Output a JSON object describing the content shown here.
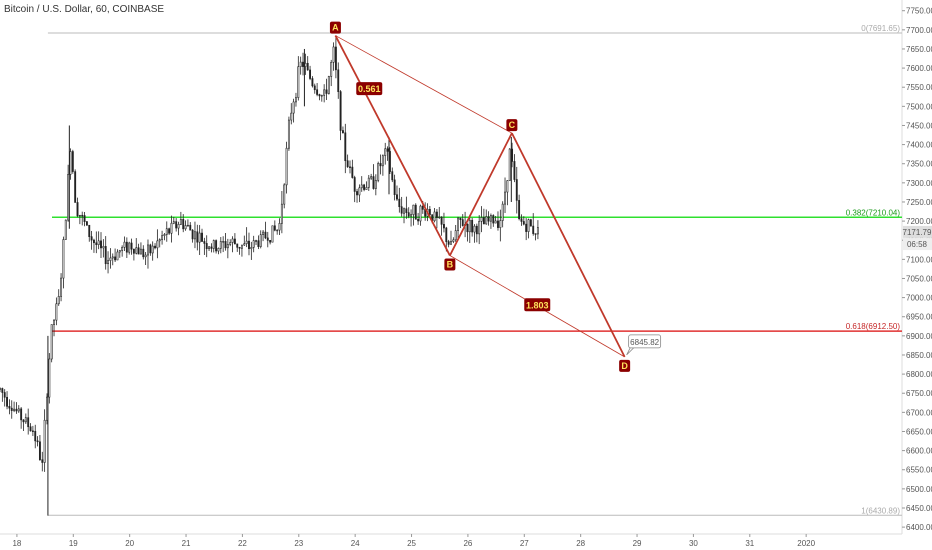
{
  "chart_data": {
    "type": "candlestick",
    "title": "Bitcoin / U.S. Dollar, 60, COINBASE",
    "colors": {
      "candle": "#222222",
      "pattern": "#c0392b",
      "label_bg": "#8b0000",
      "label_text": "#ffe45c",
      "fib_green": "#2fe02f",
      "fib_red": "#e03030",
      "fib_grey": "#bbbbbb"
    },
    "x_axis": {
      "ticks": [
        {
          "day": 18,
          "label": "18"
        },
        {
          "day": 19,
          "label": "19"
        },
        {
          "day": 20,
          "label": "20"
        },
        {
          "day": 21,
          "label": "21"
        },
        {
          "day": 22,
          "label": "22"
        },
        {
          "day": 23,
          "label": "23"
        },
        {
          "day": 24,
          "label": "24"
        },
        {
          "day": 25,
          "label": "25"
        },
        {
          "day": 26,
          "label": "26"
        },
        {
          "day": 27,
          "label": "27"
        },
        {
          "day": 28,
          "label": "28"
        },
        {
          "day": 29,
          "label": "29"
        },
        {
          "day": 30,
          "label": "30"
        },
        {
          "day": 31,
          "label": "31"
        },
        {
          "day": 32,
          "label": "2020"
        }
      ],
      "range": [
        17.7,
        33.7
      ]
    },
    "y_axis": {
      "ticks": [
        6400,
        6450,
        6500,
        6550,
        6600,
        6650,
        6700,
        6750,
        6800,
        6850,
        6900,
        6950,
        7000,
        7050,
        7100,
        7150,
        7200,
        7250,
        7300,
        7350,
        7400,
        7450,
        7500,
        7550,
        7600,
        7650,
        7700,
        7750
      ],
      "range": [
        6382,
        7778
      ],
      "position": "right"
    },
    "fib_levels": [
      {
        "label": "0(7691.65)",
        "price": 7691.65,
        "color": "grey"
      },
      {
        "label": "0.382(7210.04)",
        "price": 7210.04,
        "color": "green"
      },
      {
        "label": "0.618(6912.50)",
        "price": 6912.5,
        "color": "red"
      },
      {
        "label": "1(6430.89)",
        "price": 6430.89,
        "color": "grey"
      }
    ],
    "pattern_points": [
      {
        "label": "A",
        "day": 23.65,
        "price": 7685
      },
      {
        "label": "B",
        "day": 25.68,
        "price": 7110
      },
      {
        "label": "C",
        "day": 26.78,
        "price": 7430
      },
      {
        "label": "D",
        "day": 28.78,
        "price": 6845
      }
    ],
    "ratios": [
      {
        "label": "0.561",
        "day": 24.25,
        "price": 7545
      },
      {
        "label": "1.803",
        "day": 27.23,
        "price": 6980
      }
    ],
    "price_labels": [
      {
        "label": "7171.79",
        "price": 7171.79
      },
      {
        "label": "06:58",
        "price": 7140
      }
    ],
    "target_label": "6845.82",
    "anchors": [
      {
        "day": 17.7,
        "price": 6760
      },
      {
        "day": 18.0,
        "price": 6700
      },
      {
        "day": 18.3,
        "price": 6650
      },
      {
        "day": 18.45,
        "price": 6560
      },
      {
        "day": 18.55,
        "price": 6800
      },
      {
        "day": 18.62,
        "price": 6920
      },
      {
        "day": 18.75,
        "price": 7000
      },
      {
        "day": 18.85,
        "price": 7180
      },
      {
        "day": 18.95,
        "price": 7400
      },
      {
        "day": 19.05,
        "price": 7240
      },
      {
        "day": 19.3,
        "price": 7160
      },
      {
        "day": 19.6,
        "price": 7100
      },
      {
        "day": 20.0,
        "price": 7140
      },
      {
        "day": 20.3,
        "price": 7110
      },
      {
        "day": 20.6,
        "price": 7160
      },
      {
        "day": 20.9,
        "price": 7200
      },
      {
        "day": 21.2,
        "price": 7160
      },
      {
        "day": 21.5,
        "price": 7130
      },
      {
        "day": 21.8,
        "price": 7145
      },
      {
        "day": 22.1,
        "price": 7130
      },
      {
        "day": 22.4,
        "price": 7160
      },
      {
        "day": 22.65,
        "price": 7180
      },
      {
        "day": 22.85,
        "price": 7480
      },
      {
        "day": 23.05,
        "price": 7620
      },
      {
        "day": 23.25,
        "price": 7560
      },
      {
        "day": 23.45,
        "price": 7520
      },
      {
        "day": 23.62,
        "price": 7640
      },
      {
        "day": 23.8,
        "price": 7380
      },
      {
        "day": 24.0,
        "price": 7290
      },
      {
        "day": 24.3,
        "price": 7300
      },
      {
        "day": 24.55,
        "price": 7380
      },
      {
        "day": 24.75,
        "price": 7240
      },
      {
        "day": 25.0,
        "price": 7220
      },
      {
        "day": 25.3,
        "price": 7230
      },
      {
        "day": 25.55,
        "price": 7180
      },
      {
        "day": 25.7,
        "price": 7130
      },
      {
        "day": 25.85,
        "price": 7200
      },
      {
        "day": 26.1,
        "price": 7180
      },
      {
        "day": 26.4,
        "price": 7200
      },
      {
        "day": 26.6,
        "price": 7210
      },
      {
        "day": 26.75,
        "price": 7390
      },
      {
        "day": 26.9,
        "price": 7200
      },
      {
        "day": 27.05,
        "price": 7190
      },
      {
        "day": 27.25,
        "price": 7172
      }
    ]
  }
}
